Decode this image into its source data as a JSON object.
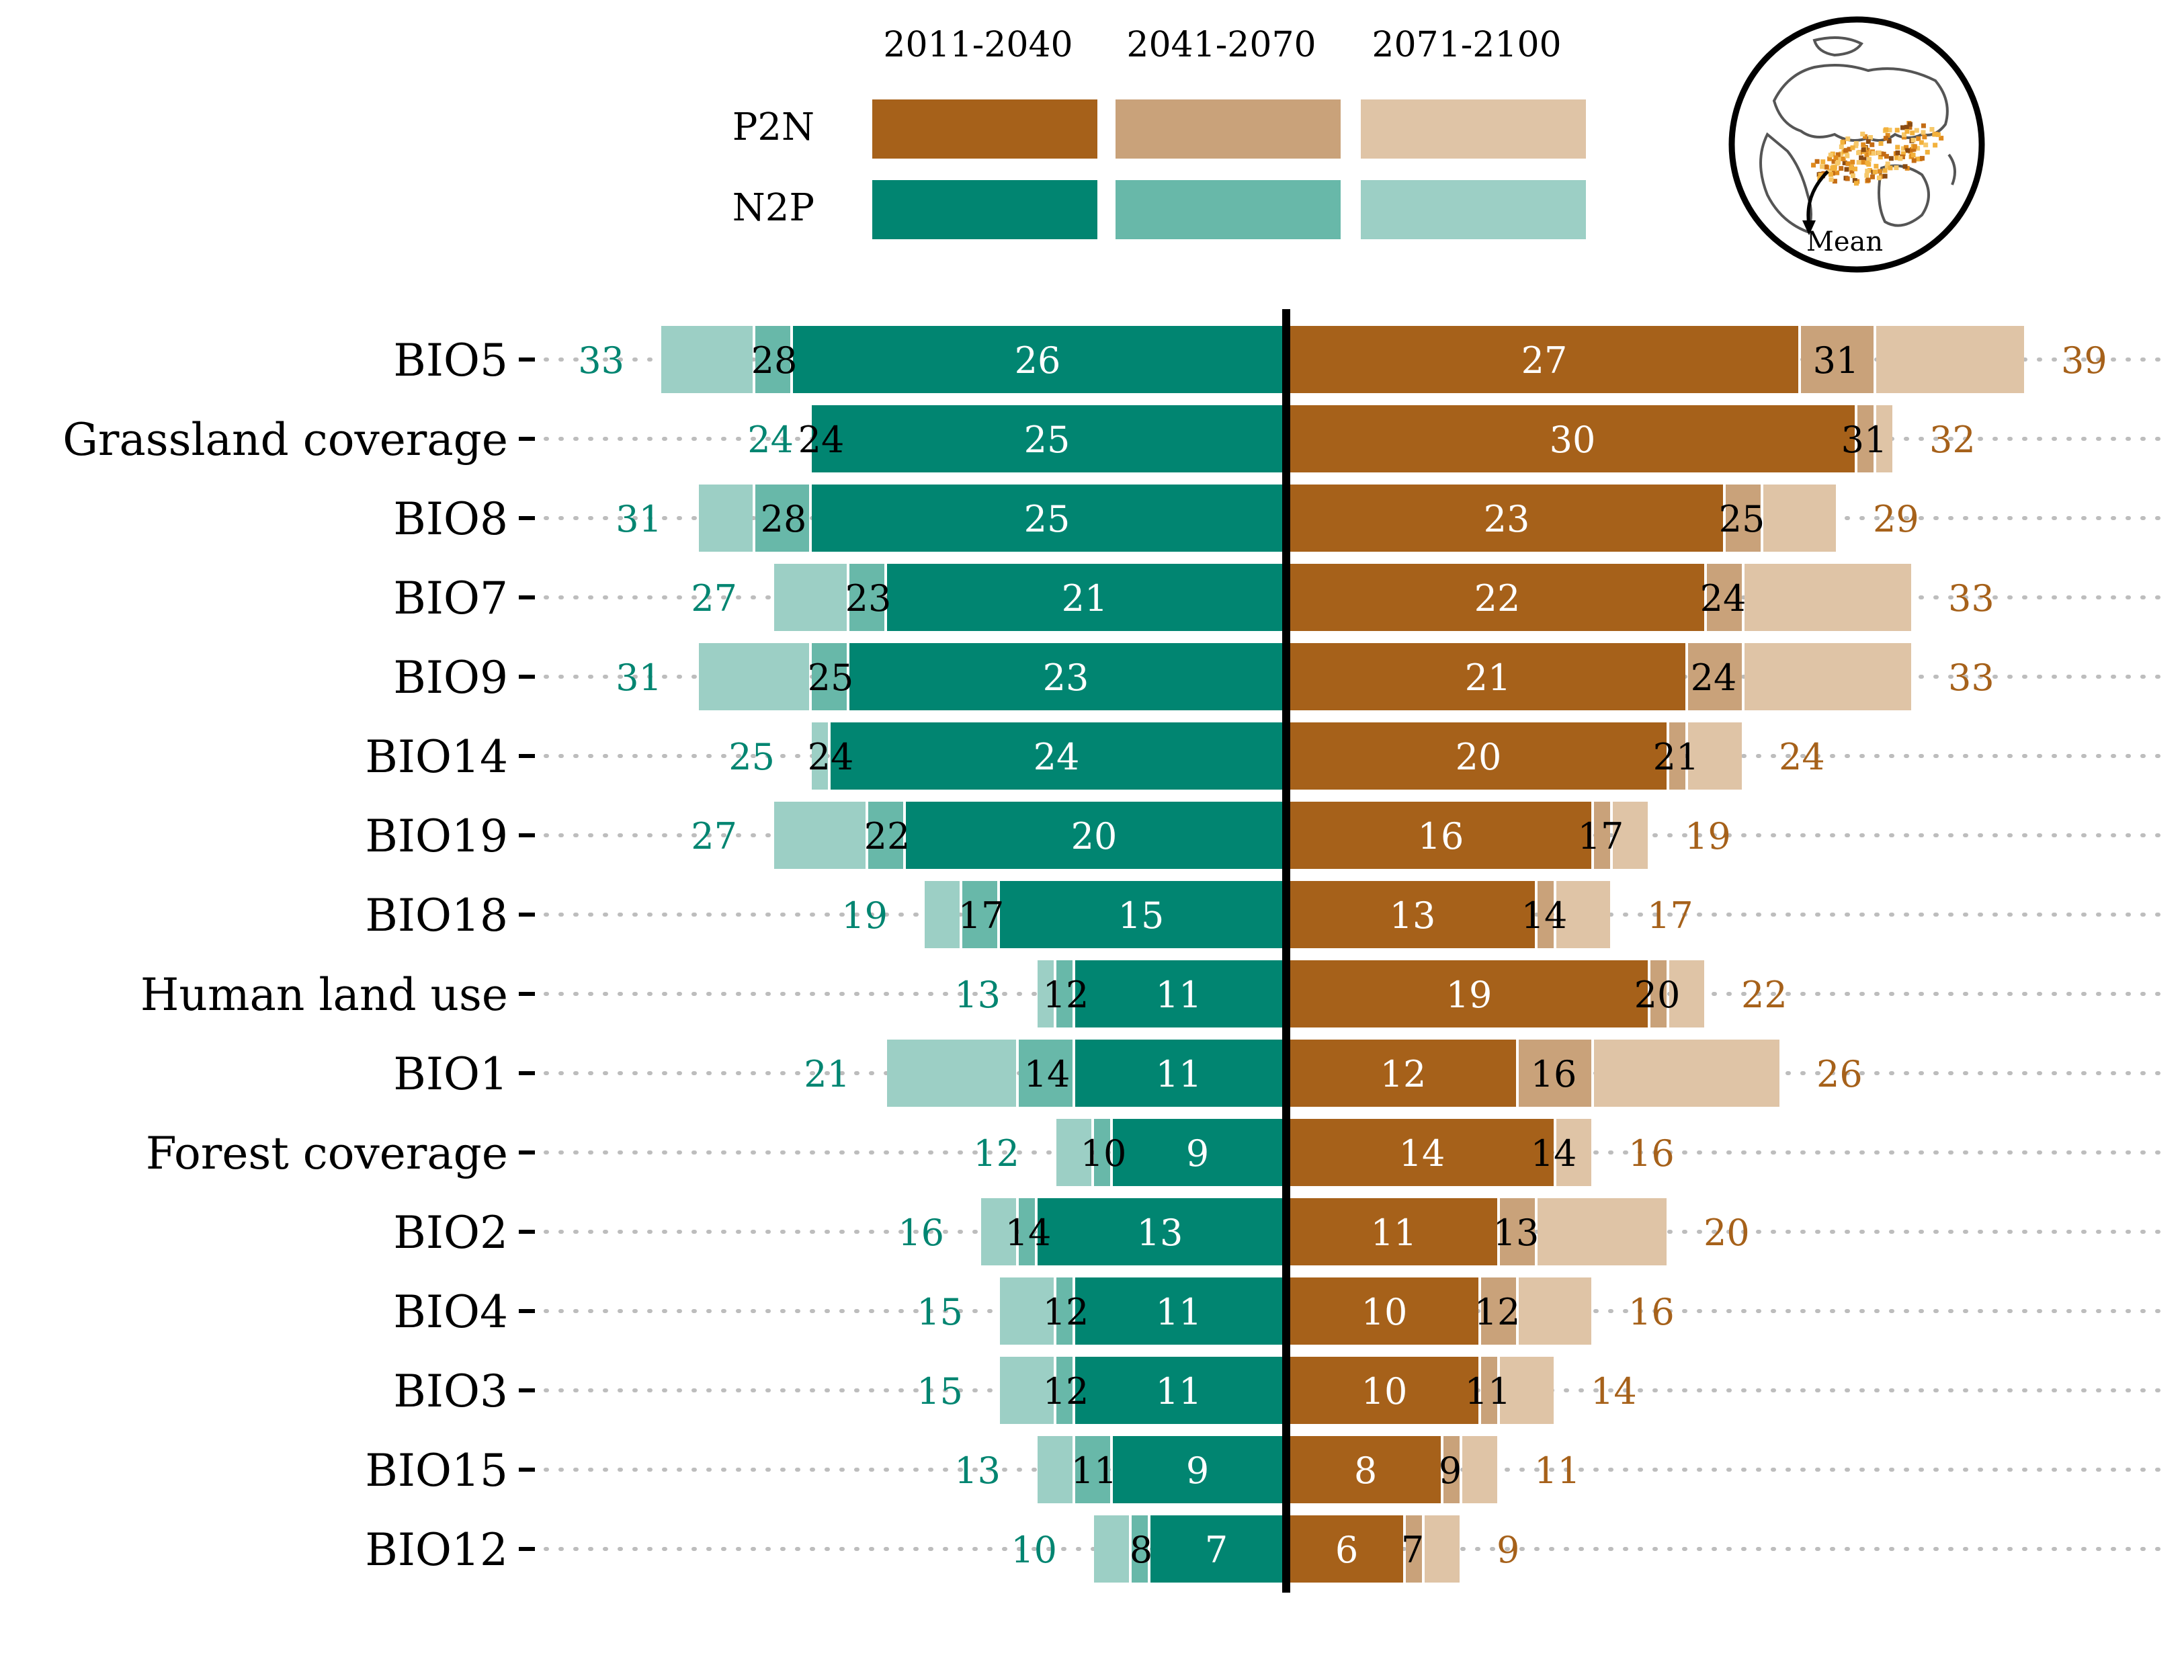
{
  "chart_data": {
    "type": "bar",
    "orientation": "horizontal-diverging",
    "periods": [
      "2011-2040",
      "2041-2070",
      "2071-2100"
    ],
    "legend": {
      "rows": [
        {
          "label": "P2N",
          "colors": [
            "#a6611a",
            "#c9a27a",
            "#dfc4a6"
          ]
        },
        {
          "label": "N2P",
          "colors": [
            "#018571",
            "#68b8a9",
            "#9ccfc5"
          ]
        }
      ],
      "placement": "top-center"
    },
    "inset": {
      "label": "Mean"
    },
    "xlim": [
      -45,
      45
    ],
    "grid": "dotted row guides",
    "categories": [
      "BIO5",
      "Grassland coverage",
      "BIO8",
      "BIO7",
      "BIO9",
      "BIO14",
      "BIO19",
      "BIO18",
      "Human land use",
      "BIO1",
      "Forest coverage",
      "BIO2",
      "BIO4",
      "BIO3",
      "BIO15",
      "BIO12"
    ],
    "series": [
      {
        "name": "P2N",
        "period": "2011-2040",
        "values": [
          27,
          30,
          23,
          22,
          21,
          20,
          16,
          13,
          19,
          12,
          14,
          11,
          10,
          10,
          8,
          6
        ]
      },
      {
        "name": "P2N",
        "period": "2041-2070",
        "values": [
          31,
          31,
          25,
          24,
          24,
          21,
          17,
          14,
          20,
          16,
          14,
          13,
          12,
          11,
          9,
          7
        ]
      },
      {
        "name": "P2N",
        "period": "2071-2100",
        "values": [
          39,
          32,
          29,
          33,
          33,
          24,
          19,
          17,
          22,
          26,
          16,
          20,
          16,
          14,
          11,
          9
        ]
      },
      {
        "name": "N2P",
        "period": "2011-2040",
        "values": [
          26,
          25,
          25,
          21,
          23,
          24,
          20,
          15,
          11,
          11,
          9,
          13,
          11,
          11,
          9,
          7
        ]
      },
      {
        "name": "N2P",
        "period": "2041-2070",
        "values": [
          28,
          24,
          28,
          23,
          25,
          24,
          22,
          17,
          12,
          14,
          10,
          14,
          12,
          12,
          11,
          8
        ]
      },
      {
        "name": "N2P",
        "period": "2071-2100",
        "values": [
          33,
          24,
          31,
          27,
          31,
          25,
          27,
          19,
          13,
          21,
          12,
          16,
          15,
          15,
          13,
          10
        ]
      }
    ]
  }
}
